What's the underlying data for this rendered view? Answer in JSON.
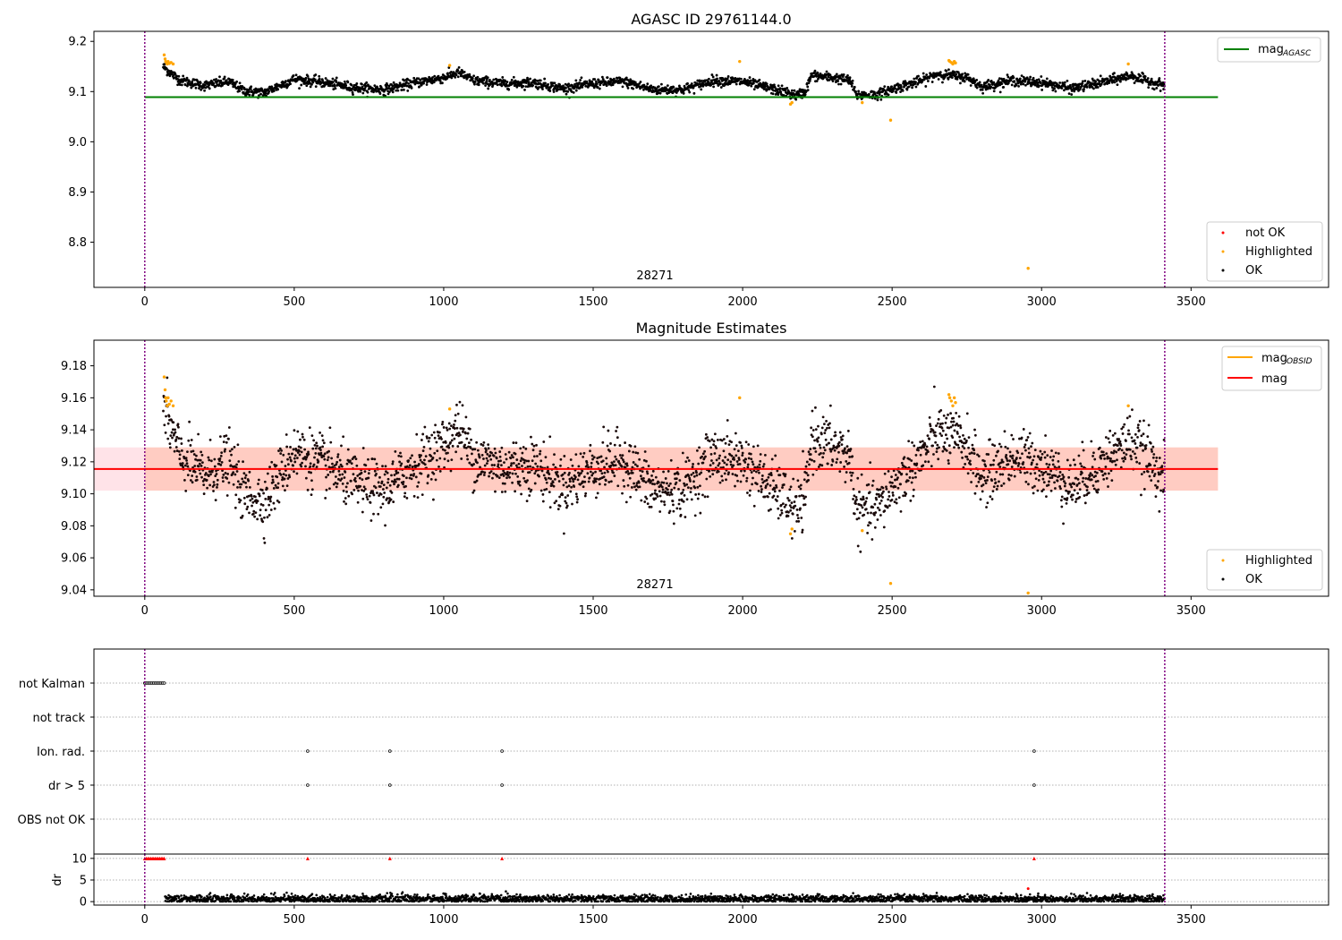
{
  "chart_data": [
    {
      "type": "scatter",
      "title": "AGASC ID 29761144.0",
      "annotation": "28271",
      "xlim": [
        -170,
        3960
      ],
      "ylim": [
        8.71,
        9.22
      ],
      "xticks": [
        0,
        500,
        1000,
        1500,
        2000,
        2500,
        3000,
        3500
      ],
      "yticks": [
        8.8,
        8.9,
        9.0,
        9.1,
        9.2
      ],
      "vlines": [
        0,
        3412
      ],
      "hline": {
        "label_main": "mag",
        "label_sub": "AGASC",
        "y": 9.089,
        "x_range": [
          0,
          3590
        ],
        "color": "#008000"
      },
      "legend_lines_position": "top-right",
      "legend_points_position": "lower-right",
      "legend_points": [
        {
          "name": "not OK",
          "color": "#ff0000"
        },
        {
          "name": "Highlighted",
          "color": "#ffa500"
        },
        {
          "name": "OK",
          "color": "#000000"
        }
      ],
      "series": [
        {
          "name": "OK",
          "color": "#000000",
          "profile": {
            "x": [
              62,
              80,
              120,
              200,
              280,
              330,
              400,
              500,
              600,
              700,
              800,
              900,
              1000,
              1050,
              1100,
              1200,
              1300,
              1400,
              1500,
              1600,
              1700,
              1800,
              1900,
              2000,
              2100,
              2150,
              2180,
              2210,
              2230,
              2300,
              2360,
              2380,
              2450,
              2500,
              2600,
              2650,
              2700,
              2750,
              2800,
              2900,
              3000,
              3100,
              3200,
              3300,
              3330,
              3412
            ],
            "y": [
              9.15,
              9.14,
              9.122,
              9.112,
              9.12,
              9.102,
              9.098,
              9.125,
              9.118,
              9.108,
              9.104,
              9.117,
              9.128,
              9.138,
              9.122,
              9.116,
              9.118,
              9.106,
              9.116,
              9.12,
              9.104,
              9.104,
              9.122,
              9.12,
              9.105,
              9.098,
              9.092,
              9.1,
              9.132,
              9.128,
              9.122,
              9.093,
              9.094,
              9.105,
              9.122,
              9.135,
              9.132,
              9.128,
              9.11,
              9.122,
              9.118,
              9.106,
              9.118,
              9.132,
              9.125,
              9.112
            ]
          },
          "spread": 0.009
        },
        {
          "name": "Highlighted",
          "color": "#ffa500",
          "x": [
            65,
            68,
            70,
            72,
            75,
            78,
            82,
            88,
            95,
            1020,
            1990,
            2160,
            2165,
            2400,
            2495,
            2690,
            2693,
            2698,
            2703,
            2708,
            2712,
            2955,
            3290
          ],
          "y": [
            9.173,
            9.165,
            9.16,
            9.158,
            9.155,
            9.16,
            9.156,
            9.158,
            9.155,
            9.152,
            9.16,
            9.075,
            9.078,
            9.078,
            9.043,
            9.162,
            9.16,
            9.158,
            9.155,
            9.16,
            9.157,
            8.748,
            9.155
          ]
        }
      ]
    },
    {
      "type": "scatter",
      "title": "Magnitude Estimates",
      "annotation": "28271",
      "xlim": [
        -170,
        3960
      ],
      "ylim": [
        9.036,
        9.196
      ],
      "xticks": [
        0,
        500,
        1000,
        1500,
        2000,
        2500,
        3000,
        3500
      ],
      "yticks": [
        9.04,
        9.06,
        9.08,
        9.1,
        9.12,
        9.14,
        9.16,
        9.18
      ],
      "vlines": [
        0,
        3412
      ],
      "mag_line": {
        "label": "mag",
        "y": 9.1155,
        "color": "#ff0000",
        "band": [
          9.102,
          9.129
        ],
        "x_range": [
          -170,
          3590
        ]
      },
      "mag_obsid_legend": {
        "label_main": "mag",
        "label_sub": "OBSID",
        "color": "#ffa500"
      },
      "legend_lines_position": "top-right",
      "legend_points_position": "lower-right",
      "legend_points": [
        {
          "name": "Highlighted",
          "color": "#ffa500"
        },
        {
          "name": "OK",
          "color": "#000000"
        }
      ],
      "series": [
        {
          "name": "OK",
          "color": "#000000",
          "profile_ref": 0,
          "spread": 0.011
        },
        {
          "name": "Highlighted",
          "color": "#ffa500",
          "x": [
            65,
            68,
            70,
            72,
            75,
            78,
            82,
            88,
            95,
            1020,
            1990,
            2160,
            2165,
            2400,
            2495,
            2690,
            2693,
            2698,
            2703,
            2708,
            2712,
            2955,
            3290
          ],
          "y": [
            9.173,
            9.165,
            9.16,
            9.158,
            9.155,
            9.16,
            9.156,
            9.158,
            9.155,
            9.153,
            9.16,
            9.075,
            9.078,
            9.077,
            9.044,
            9.162,
            9.16,
            9.158,
            9.155,
            9.16,
            9.157,
            9.038,
            9.155
          ]
        }
      ]
    },
    {
      "type": "scatter",
      "title": "",
      "xlim": [
        -170,
        3960
      ],
      "vlines": [
        0,
        3412
      ],
      "flag_categories": [
        "not Kalman",
        "not track",
        "Ion. rad.",
        "dr > 5",
        "OBS not OK"
      ],
      "flags": [
        {
          "category": "not Kalman",
          "x": [
            0,
            5,
            10,
            15,
            20,
            25,
            30,
            35,
            40,
            45,
            50,
            55,
            60,
            65
          ]
        },
        {
          "category": "not track",
          "x": []
        },
        {
          "category": "Ion. rad.",
          "x": [
            545,
            820,
            1195,
            2975
          ]
        },
        {
          "category": "dr > 5",
          "x": [
            545,
            820,
            1195,
            2975
          ]
        },
        {
          "category": "OBS not OK",
          "x": []
        }
      ]
    },
    {
      "type": "scatter",
      "ylabel": "dr",
      "xlim": [
        -170,
        3960
      ],
      "ylim": [
        -0.8,
        11
      ],
      "xticks": [
        0,
        500,
        1000,
        1500,
        2000,
        2500,
        3000,
        3500
      ],
      "yticks": [
        0,
        5,
        10
      ],
      "vlines": [
        0,
        3412
      ],
      "clipped_points": {
        "color": "#ff0000",
        "x": [
          0,
          5,
          10,
          15,
          20,
          25,
          30,
          35,
          40,
          45,
          50,
          55,
          60,
          65,
          545,
          820,
          1195,
          2975
        ],
        "y": 10
      },
      "outlier": {
        "color": "#ff0000",
        "x": 2955,
        "y": 3.0
      },
      "series": [
        {
          "name": "dr",
          "color": "#000000",
          "x_range": [
            68,
            3412
          ],
          "y_center": 0.6,
          "spread": 0.45
        }
      ]
    }
  ]
}
